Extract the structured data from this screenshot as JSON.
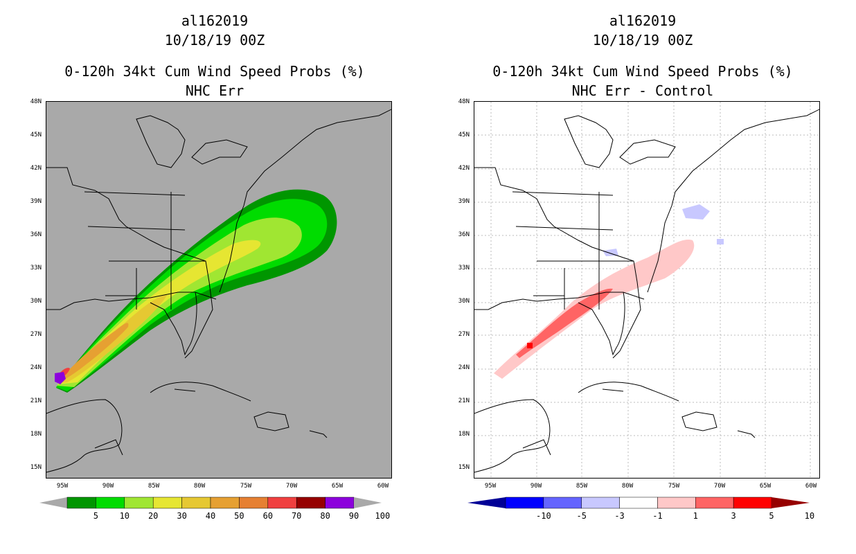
{
  "left": {
    "storm": "al162019",
    "datetime": "10/18/19 00Z",
    "product": "0-120h 34kt Cum Wind Speed Probs (%)",
    "subtitle": "NHC Err",
    "colorbar": {
      "labels": [
        "5",
        "10",
        "20",
        "30",
        "40",
        "50",
        "60",
        "70",
        "80",
        "90",
        "100"
      ],
      "colors": [
        "#009600",
        "#00dc00",
        "#a0e632",
        "#e6e632",
        "#e6c832",
        "#e6a032",
        "#e68032",
        "#f04040",
        "#960000",
        "#8c00dc",
        "#a9a9a9"
      ]
    }
  },
  "right": {
    "storm": "al162019",
    "datetime": "10/18/19 00Z",
    "product": "0-120h 34kt Cum Wind Speed Probs (%)",
    "subtitle": "NHC Err - Control",
    "colorbar": {
      "labels": [
        "-10",
        "-5",
        "-3",
        "-1",
        "1",
        "3",
        "5",
        "10"
      ],
      "colors": [
        "#000096",
        "#0000ff",
        "#6464ff",
        "#c8c8ff",
        "#ffffff",
        "#ffc8c8",
        "#ff6464",
        "#ff0000",
        "#960000"
      ]
    }
  },
  "lat_labels": [
    "48N",
    "45N",
    "42N",
    "39N",
    "36N",
    "33N",
    "30N",
    "27N",
    "24N",
    "21N",
    "18N",
    "15N"
  ],
  "lon_labels": [
    "95W",
    "90W",
    "85W",
    "80W",
    "75W",
    "70W",
    "65W",
    "60W"
  ]
}
